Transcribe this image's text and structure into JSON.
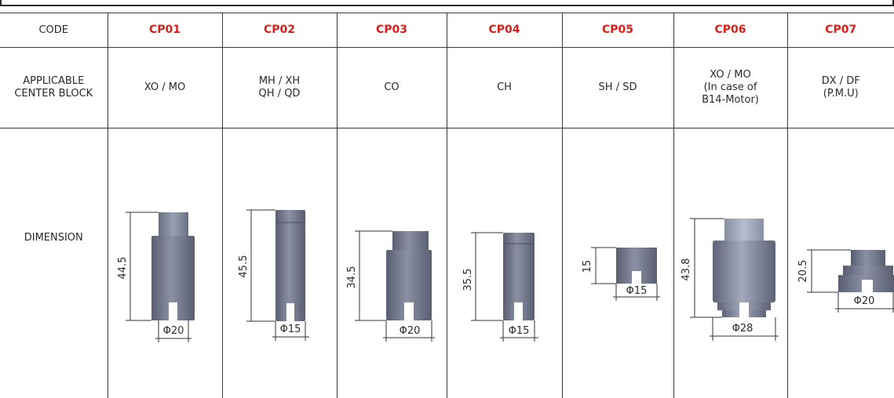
{
  "headers": {
    "code": "CODE",
    "center_block": [
      "APPLICABLE",
      "CENTER BLOCK"
    ],
    "dimension": "DIMENSION"
  },
  "colors": {
    "code_red": "#d8201c",
    "part_dark": "#5e6275",
    "part_light": "#8a8fa3",
    "part_cap": "#6f7386"
  },
  "items": [
    {
      "code": "CP01",
      "center_block": [
        "XO /  MO"
      ],
      "height": "44.5",
      "diameter": "Φ20"
    },
    {
      "code": "CP02",
      "center_block": [
        "MH / XH",
        "QH / QD"
      ],
      "height": "45.5",
      "diameter": "Φ15"
    },
    {
      "code": "CP03",
      "center_block": [
        "CO"
      ],
      "height": "34.5",
      "diameter": "Φ20"
    },
    {
      "code": "CP04",
      "center_block": [
        "CH"
      ],
      "height": "35.5",
      "diameter": "Φ15"
    },
    {
      "code": "CP05",
      "center_block": [
        "SH / SD"
      ],
      "height": "15",
      "diameter": "Φ15"
    },
    {
      "code": "CP06",
      "center_block": [
        "XO / MO",
        "(In case of",
        "B14-Motor)"
      ],
      "height": "43.8",
      "diameter": "Φ28"
    },
    {
      "code": "CP07",
      "center_block": [
        "DX / DF",
        "(P.M.U)"
      ],
      "height": "20.5",
      "diameter": "Φ20"
    }
  ]
}
